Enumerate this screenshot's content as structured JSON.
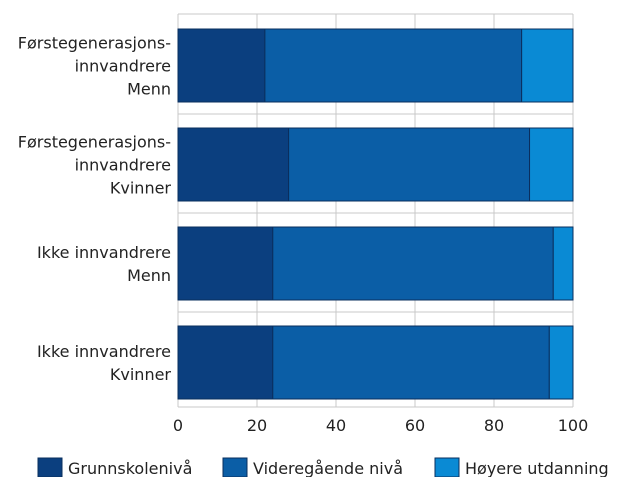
{
  "chart_data": {
    "type": "bar",
    "orientation": "horizontal",
    "stacked": true,
    "title": "",
    "xlabel": "",
    "ylabel": "",
    "xlim": [
      0,
      100
    ],
    "xticks": [
      "0",
      "20",
      "40",
      "60",
      "80",
      "100"
    ],
    "grid": "vertical",
    "legend_position": "bottom",
    "categories": [
      [
        "Førstegenerasjons-",
        "innvandrere",
        "Menn"
      ],
      [
        "Førstegenerasjons-",
        "innvandrere",
        "Kvinner"
      ],
      [
        "Ikke innvandrere",
        "Menn"
      ],
      [
        "Ikke innvandrere",
        "Kvinner"
      ]
    ],
    "series": [
      {
        "name": "Grunnskolenivå",
        "color": "#0b3f7f",
        "values": [
          22,
          28,
          24,
          24
        ]
      },
      {
        "name": "Videregående nivå",
        "color": "#0b5ea6",
        "values": [
          65,
          61,
          71,
          70
        ]
      },
      {
        "name": "Høyere utdanning",
        "color": "#0a8ad4",
        "values": [
          13,
          11,
          5,
          6
        ]
      }
    ]
  }
}
